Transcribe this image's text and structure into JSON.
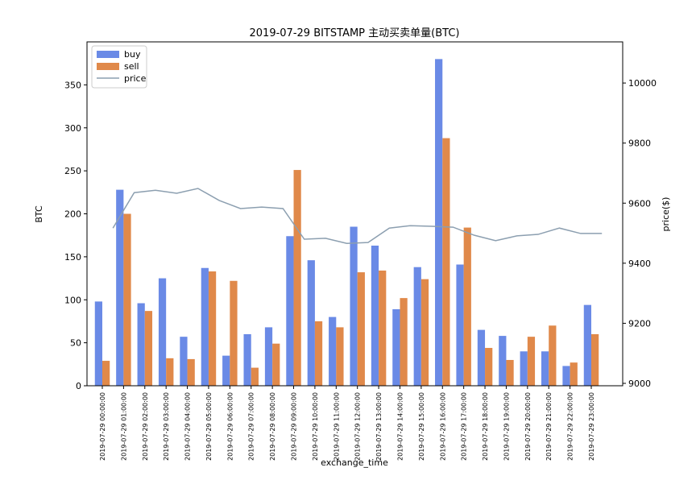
{
  "chart_data": {
    "type": "bar",
    "title": "2019-07-29 BITSTAMP 主动买卖单量(BTC)",
    "x_label": "exchange_time",
    "y_label": "BTC",
    "y2_label": "price($)",
    "categories": [
      "2019-07-29 00:00:00",
      "2019-07-29 01:00:00",
      "2019-07-29 02:00:00",
      "2019-07-29 03:00:00",
      "2019-07-29 04:00:00",
      "2019-07-29 05:00:00",
      "2019-07-29 06:00:00",
      "2019-07-29 07:00:00",
      "2019-07-29 08:00:00",
      "2019-07-29 09:00:00",
      "2019-07-29 10:00:00",
      "2019-07-29 11:00:00",
      "2019-07-29 12:00:00",
      "2019-07-29 13:00:00",
      "2019-07-29 14:00:00",
      "2019-07-29 15:00:00",
      "2019-07-29 16:00:00",
      "2019-07-29 17:00:00",
      "2019-07-29 18:00:00",
      "2019-07-29 19:00:00",
      "2019-07-29 20:00:00",
      "2019-07-29 21:00:00",
      "2019-07-29 22:00:00",
      "2019-07-29 23:00:00"
    ],
    "series": [
      {
        "name": "buy",
        "type": "bar",
        "color": "#6a8ae6",
        "values": [
          98,
          228,
          96,
          125,
          57,
          137,
          35,
          60,
          68,
          174,
          146,
          80,
          185,
          163,
          89,
          138,
          380,
          141,
          65,
          58,
          40,
          40,
          23,
          94
        ]
      },
      {
        "name": "sell",
        "type": "bar",
        "color": "#e0894a",
        "values": [
          29,
          200,
          87,
          32,
          31,
          133,
          122,
          21,
          49,
          251,
          75,
          68,
          132,
          134,
          102,
          124,
          288,
          184,
          44,
          30,
          57,
          70,
          27,
          60
        ]
      },
      {
        "name": "price",
        "type": "line",
        "axis": "y2",
        "color": "#8c9fb0",
        "values": [
          9517,
          9635,
          9643,
          9633,
          9649,
          9609,
          9582,
          9587,
          9582,
          9480,
          9483,
          9466,
          9469,
          9517,
          9525,
          9523,
          9520,
          9493,
          9475,
          9491,
          9496,
          9517,
          9499,
          9499
        ]
      }
    ],
    "ylim": [
      0,
      400
    ],
    "yticks": [
      0,
      50,
      100,
      150,
      200,
      250,
      300,
      350
    ],
    "y2lim": [
      8992,
      10137
    ],
    "y2ticks": [
      9000,
      9200,
      9400,
      9600,
      9800,
      10000
    ],
    "legend": "upper left",
    "grid": false
  }
}
